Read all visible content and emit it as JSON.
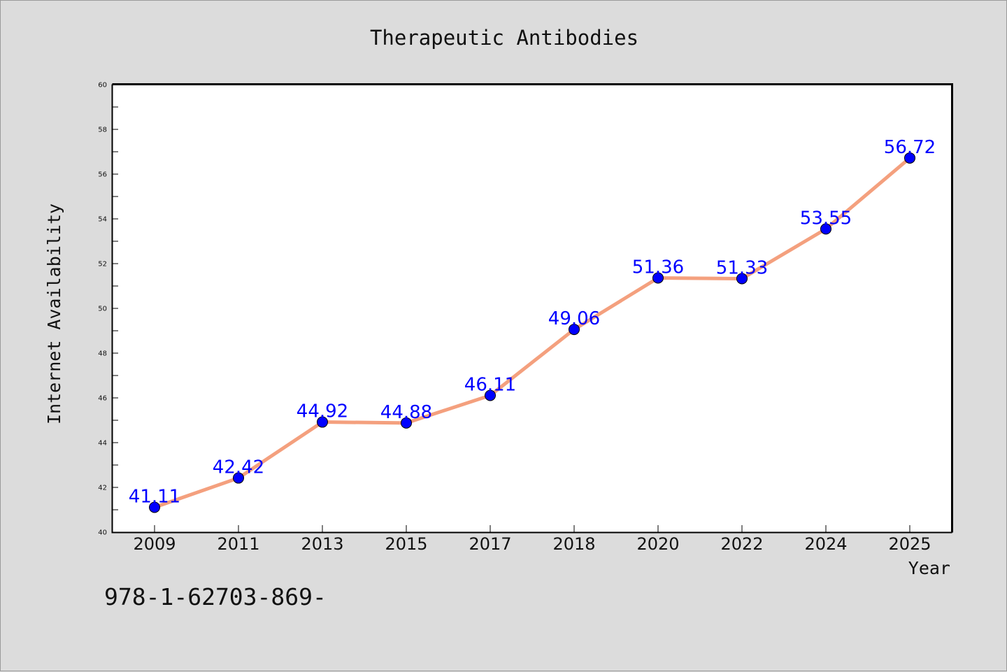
{
  "chart_data": {
    "type": "line",
    "title": "Therapeutic Antibodies",
    "xlabel": "Year",
    "ylabel": "Internet Availability",
    "categories": [
      "2009",
      "2011",
      "2013",
      "2015",
      "2017",
      "2018",
      "2020",
      "2022",
      "2024",
      "2025"
    ],
    "series": [
      {
        "values": [
          41.11,
          42.42,
          44.92,
          44.88,
          46.11,
          49.06,
          51.36,
          51.33,
          53.55,
          56.72
        ],
        "labels": [
          "41.11",
          "42.42",
          "44.92",
          "44.88",
          "46.11",
          "49.06",
          "51.36",
          "51.33",
          "53.55",
          "56.72"
        ]
      }
    ],
    "ylim": [
      40,
      60
    ],
    "yticks": [
      "40",
      "42",
      "44",
      "46",
      "48",
      "50",
      "52",
      "54",
      "56",
      "58",
      "60"
    ],
    "grid": false,
    "legend": "none",
    "line_color": "#f4a07e",
    "marker_color": "#0000ff",
    "label_color": "#0000ff"
  },
  "footnote": "978-1-62703-869-"
}
